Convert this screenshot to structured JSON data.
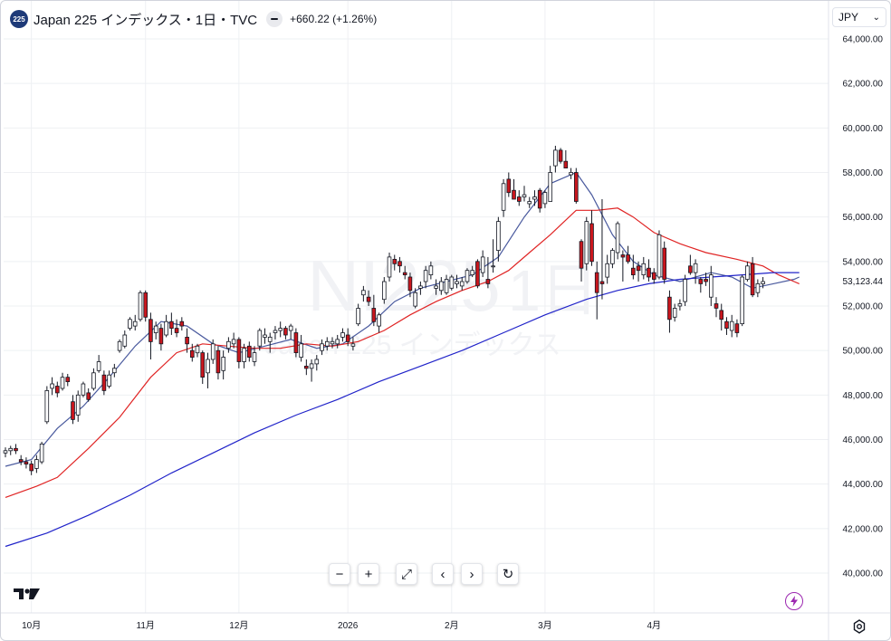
{
  "header": {
    "symbol_badge": "225",
    "title": "Japan 225 インデックス・1日・TVC",
    "change": "+660.22 (+1.26%)"
  },
  "currency": {
    "label": "JPY"
  },
  "watermark": {
    "symbol": "NI225",
    "unit": "1日",
    "name": "Japan 225 インデックス"
  },
  "toolbar": [
    {
      "name": "zoom-out-button",
      "glyph": "−"
    },
    {
      "name": "zoom-in-button",
      "glyph": "+"
    },
    {
      "name": "reset-scale-button",
      "glyph": "⤢"
    },
    {
      "name": "scroll-left-button",
      "glyph": "‹"
    },
    {
      "name": "scroll-right-button",
      "glyph": "›"
    },
    {
      "name": "reset-chart-button",
      "glyph": "↻"
    }
  ],
  "colors": {
    "up_body": "#ffffff",
    "up_border": "#131722",
    "down_body": "#c9161d",
    "down_border": "#131722",
    "ma_short": "#4a5a9e",
    "ma_mid": "#e02424",
    "ma_long": "#2023c9",
    "grid": "#eef0f3",
    "axis_text": "#131722",
    "accent": "#9c27b0"
  },
  "chart_data": {
    "type": "candlestick",
    "ylim": [
      38600,
      64600
    ],
    "y_ticks": [
      40000,
      42000,
      44000,
      46000,
      48000,
      50000,
      52000,
      54000,
      56000,
      58000,
      60000,
      62000,
      64000
    ],
    "y_tick_labels": [
      "40,000.00",
      "42,000.00",
      "44,000.00",
      "46,000.00",
      "48,000.00",
      "50,000.00",
      "52,000.00",
      "54,000.00",
      "56,000.00",
      "58,000.00",
      "60,000.00",
      "62,000.00",
      "64,000.00"
    ],
    "x_ticks": [
      {
        "index": 5,
        "label": "10月"
      },
      {
        "index": 27,
        "label": "11月"
      },
      {
        "index": 45,
        "label": "12月"
      },
      {
        "index": 66,
        "label": "2026"
      },
      {
        "index": 86,
        "label": "2月"
      },
      {
        "index": 104,
        "label": "3月"
      },
      {
        "index": 125,
        "label": "4月"
      }
    ],
    "last_price": 53123.44,
    "last_price_label": "53,123.44",
    "candles": [
      [
        45400,
        45650,
        45200,
        45500
      ],
      [
        45500,
        45720,
        45300,
        45600
      ],
      [
        45600,
        45800,
        45350,
        45500
      ],
      [
        45100,
        45300,
        44850,
        45000
      ],
      [
        45000,
        45200,
        44700,
        44900
      ],
      [
        44900,
        45050,
        44400,
        44600
      ],
      [
        44700,
        45300,
        44500,
        45100
      ],
      [
        45000,
        45900,
        44900,
        45800
      ],
      [
        46800,
        48400,
        46700,
        48200
      ],
      [
        48300,
        48800,
        48000,
        48500
      ],
      [
        48400,
        48600,
        47900,
        48100
      ],
      [
        48300,
        49000,
        48200,
        48800
      ],
      [
        48800,
        48950,
        48400,
        48600
      ],
      [
        47700,
        48000,
        46700,
        46900
      ],
      [
        47100,
        48200,
        46800,
        48000
      ],
      [
        48000,
        48600,
        47900,
        48500
      ],
      [
        48100,
        48300,
        47700,
        47800
      ],
      [
        48300,
        49200,
        48200,
        49000
      ],
      [
        49100,
        49800,
        49000,
        49500
      ],
      [
        48900,
        49100,
        48000,
        48200
      ],
      [
        48400,
        49100,
        48300,
        48900
      ],
      [
        49000,
        49400,
        48800,
        49200
      ],
      [
        50000,
        50500,
        49900,
        50400
      ],
      [
        50200,
        50900,
        50100,
        50700
      ],
      [
        51000,
        51500,
        50900,
        51400
      ],
      [
        51100,
        51600,
        50900,
        51300
      ],
      [
        51400,
        52700,
        51300,
        52600
      ],
      [
        52600,
        52700,
        51300,
        51500
      ],
      [
        51400,
        51700,
        49600,
        50400
      ],
      [
        50800,
        51300,
        50500,
        51100
      ],
      [
        51000,
        51200,
        50000,
        50300
      ],
      [
        50700,
        51600,
        50600,
        51300
      ],
      [
        51300,
        51700,
        50700,
        51000
      ],
      [
        51000,
        51400,
        50600,
        50800
      ],
      [
        51300,
        51500,
        50900,
        51100
      ],
      [
        50600,
        51000,
        49900,
        50300
      ],
      [
        50000,
        50300,
        49500,
        49700
      ],
      [
        49900,
        50300,
        49700,
        50200
      ],
      [
        49900,
        50000,
        48500,
        48800
      ],
      [
        49000,
        49900,
        48300,
        49600
      ],
      [
        49600,
        50500,
        49400,
        50300
      ],
      [
        50000,
        50200,
        48700,
        49000
      ],
      [
        49100,
        50000,
        48700,
        49700
      ],
      [
        50100,
        50600,
        49900,
        50400
      ],
      [
        50300,
        50800,
        50100,
        50500
      ],
      [
        50500,
        50600,
        49200,
        49500
      ],
      [
        49500,
        50300,
        49200,
        50100
      ],
      [
        50200,
        50400,
        49500,
        49700
      ],
      [
        49500,
        50200,
        49300,
        49900
      ],
      [
        50200,
        51000,
        50000,
        50900
      ],
      [
        50600,
        51000,
        50300,
        50700
      ],
      [
        50400,
        50800,
        49900,
        50600
      ],
      [
        50800,
        51100,
        50500,
        50900
      ],
      [
        50900,
        51300,
        50600,
        51000
      ],
      [
        51000,
        51100,
        50500,
        50700
      ],
      [
        50900,
        51200,
        50500,
        51100
      ],
      [
        50800,
        51000,
        49700,
        49900
      ],
      [
        49700,
        50700,
        49500,
        50300
      ],
      [
        49300,
        49600,
        48900,
        49200
      ],
      [
        49200,
        49600,
        48600,
        49400
      ],
      [
        49400,
        49800,
        49100,
        49600
      ],
      [
        50000,
        50500,
        49800,
        50300
      ],
      [
        50200,
        50600,
        50000,
        50400
      ],
      [
        50300,
        50600,
        50100,
        50400
      ],
      [
        50300,
        50700,
        50100,
        50500
      ],
      [
        50600,
        51000,
        50400,
        50800
      ],
      [
        50700,
        51000,
        50200,
        50400
      ],
      [
        50200,
        50600,
        50000,
        50300
      ],
      [
        51200,
        52100,
        51100,
        51900
      ],
      [
        52500,
        52900,
        52200,
        52700
      ],
      [
        52400,
        52700,
        52000,
        52200
      ],
      [
        51900,
        52500,
        51100,
        51300
      ],
      [
        51100,
        51700,
        50800,
        51600
      ],
      [
        52300,
        53300,
        52100,
        53100
      ],
      [
        53300,
        54400,
        53100,
        54200
      ],
      [
        54100,
        54300,
        53600,
        53900
      ],
      [
        54000,
        54200,
        53500,
        53800
      ],
      [
        53500,
        53800,
        53200,
        53400
      ],
      [
        53300,
        53500,
        52400,
        52700
      ],
      [
        52000,
        52800,
        51900,
        52600
      ],
      [
        52800,
        53100,
        52500,
        52900
      ],
      [
        53100,
        53800,
        52800,
        53600
      ],
      [
        53400,
        54000,
        53200,
        53800
      ],
      [
        52800,
        53200,
        52500,
        52900
      ],
      [
        52700,
        53300,
        52500,
        53100
      ],
      [
        52600,
        53400,
        52500,
        53200
      ],
      [
        52800,
        53400,
        52700,
        53300
      ],
      [
        53000,
        53400,
        52800,
        53100
      ],
      [
        52900,
        53300,
        52700,
        53100
      ],
      [
        53100,
        53700,
        53000,
        53600
      ],
      [
        53400,
        53800,
        53300,
        53600
      ],
      [
        54000,
        54100,
        52800,
        52900
      ],
      [
        53500,
        54500,
        53300,
        54200
      ],
      [
        53200,
        54200,
        52800,
        53000
      ],
      [
        53800,
        55000,
        53500,
        53800
      ],
      [
        54500,
        56000,
        54000,
        55800
      ],
      [
        56300,
        57700,
        56000,
        57500
      ],
      [
        57700,
        58000,
        56900,
        57100
      ],
      [
        57200,
        57700,
        56800,
        56800
      ],
      [
        56900,
        57200,
        56500,
        56700
      ],
      [
        56900,
        57400,
        56700,
        57000
      ],
      [
        56600,
        56900,
        56400,
        56700
      ],
      [
        56800,
        57200,
        56500,
        56900
      ],
      [
        57200,
        57300,
        56200,
        56400
      ],
      [
        56600,
        57200,
        56400,
        57100
      ],
      [
        56700,
        58300,
        56700,
        58000
      ],
      [
        58300,
        59200,
        58000,
        59000
      ],
      [
        59000,
        59100,
        58400,
        58500
      ],
      [
        58500,
        59000,
        58200,
        58200
      ],
      [
        57900,
        58200,
        57700,
        58000
      ],
      [
        58000,
        58200,
        56600,
        56700
      ],
      [
        54900,
        55000,
        53100,
        53700
      ],
      [
        53900,
        56000,
        53600,
        55800
      ],
      [
        55700,
        56300,
        53800,
        54000
      ],
      [
        53500,
        54000,
        51400,
        52600
      ],
      [
        53100,
        56800,
        52300,
        53000
      ],
      [
        53300,
        54300,
        53000,
        53900
      ],
      [
        53900,
        54600,
        53700,
        54500
      ],
      [
        54400,
        55800,
        54100,
        55700
      ],
      [
        54300,
        54500,
        53100,
        54200
      ],
      [
        54300,
        54700,
        53900,
        54000
      ],
      [
        53700,
        54300,
        53200,
        53400
      ],
      [
        53800,
        54000,
        53100,
        53600
      ],
      [
        53400,
        54200,
        53200,
        53900
      ],
      [
        53700,
        54100,
        53100,
        53300
      ],
      [
        53500,
        53700,
        53000,
        53200
      ],
      [
        53300,
        55400,
        53200,
        55200
      ],
      [
        54600,
        54900,
        53000,
        53200
      ],
      [
        52400,
        52700,
        50800,
        51400
      ],
      [
        51500,
        52100,
        51300,
        51900
      ],
      [
        52000,
        52300,
        51800,
        52100
      ],
      [
        52200,
        53400,
        52000,
        53200
      ],
      [
        53800,
        54300,
        53400,
        53500
      ],
      [
        53500,
        54100,
        53000,
        53900
      ],
      [
        53200,
        53300,
        52600,
        53000
      ],
      [
        53200,
        53500,
        52900,
        53100
      ],
      [
        52400,
        53800,
        52000,
        53400
      ],
      [
        52100,
        52400,
        51500,
        51900
      ],
      [
        51800,
        52100,
        50900,
        51400
      ],
      [
        51300,
        51500,
        50700,
        51000
      ],
      [
        50900,
        51600,
        50600,
        51300
      ],
      [
        51200,
        51400,
        50600,
        50800
      ],
      [
        51200,
        53400,
        51100,
        53300
      ],
      [
        53200,
        54000,
        53100,
        53800
      ],
      [
        53900,
        54200,
        52400,
        52500
      ],
      [
        52600,
        53200,
        52400,
        53000
      ],
      [
        53000,
        53300,
        52800,
        53100
      ]
    ],
    "series": [
      {
        "name": "",
        "color": "#4a5a9e",
        "points": [
          [
            0,
            44800
          ],
          [
            5,
            45100
          ],
          [
            10,
            46500
          ],
          [
            15,
            47500
          ],
          [
            20,
            48800
          ],
          [
            25,
            50200
          ],
          [
            30,
            51300
          ],
          [
            35,
            51100
          ],
          [
            40,
            50300
          ],
          [
            45,
            49900
          ],
          [
            50,
            50200
          ],
          [
            55,
            50500
          ],
          [
            60,
            50100
          ],
          [
            65,
            50300
          ],
          [
            70,
            51100
          ],
          [
            75,
            52200
          ],
          [
            80,
            52800
          ],
          [
            85,
            53100
          ],
          [
            90,
            53400
          ],
          [
            95,
            54200
          ],
          [
            100,
            56000
          ],
          [
            105,
            57500
          ],
          [
            110,
            58000
          ],
          [
            113,
            57000
          ],
          [
            117,
            55200
          ],
          [
            121,
            54000
          ],
          [
            125,
            53400
          ],
          [
            130,
            53100
          ],
          [
            136,
            53500
          ],
          [
            140,
            53300
          ],
          [
            144,
            52800
          ],
          [
            148,
            53000
          ],
          [
            152,
            53200
          ],
          [
            153,
            53300
          ]
        ]
      },
      {
        "name": "",
        "color": "#e02424",
        "points": [
          [
            0,
            43400
          ],
          [
            6,
            43900
          ],
          [
            10,
            44300
          ],
          [
            16,
            45600
          ],
          [
            22,
            47000
          ],
          [
            28,
            48800
          ],
          [
            33,
            49900
          ],
          [
            38,
            50300
          ],
          [
            43,
            50200
          ],
          [
            48,
            50100
          ],
          [
            53,
            50100
          ],
          [
            58,
            50300
          ],
          [
            63,
            50200
          ],
          [
            68,
            50400
          ],
          [
            73,
            50900
          ],
          [
            78,
            51600
          ],
          [
            83,
            52200
          ],
          [
            88,
            52700
          ],
          [
            93,
            53100
          ],
          [
            97,
            53600
          ],
          [
            101,
            54400
          ],
          [
            105,
            55200
          ],
          [
            110,
            56300
          ],
          [
            114,
            56300
          ],
          [
            118,
            56400
          ],
          [
            121,
            56000
          ],
          [
            125,
            55300
          ],
          [
            130,
            54800
          ],
          [
            135,
            54400
          ],
          [
            141,
            54100
          ],
          [
            146,
            53800
          ],
          [
            149,
            53400
          ],
          [
            152,
            53100
          ],
          [
            153,
            53000
          ]
        ]
      },
      {
        "name": "",
        "color": "#2023c9",
        "points": [
          [
            0,
            41200
          ],
          [
            8,
            41800
          ],
          [
            16,
            42600
          ],
          [
            24,
            43500
          ],
          [
            32,
            44500
          ],
          [
            40,
            45400
          ],
          [
            48,
            46300
          ],
          [
            56,
            47100
          ],
          [
            64,
            47800
          ],
          [
            72,
            48600
          ],
          [
            80,
            49300
          ],
          [
            88,
            50000
          ],
          [
            96,
            50800
          ],
          [
            104,
            51600
          ],
          [
            112,
            52300
          ],
          [
            118,
            52700
          ],
          [
            124,
            53000
          ],
          [
            130,
            53200
          ],
          [
            136,
            53300
          ],
          [
            142,
            53400
          ],
          [
            148,
            53500
          ],
          [
            153,
            53500
          ]
        ]
      }
    ]
  }
}
